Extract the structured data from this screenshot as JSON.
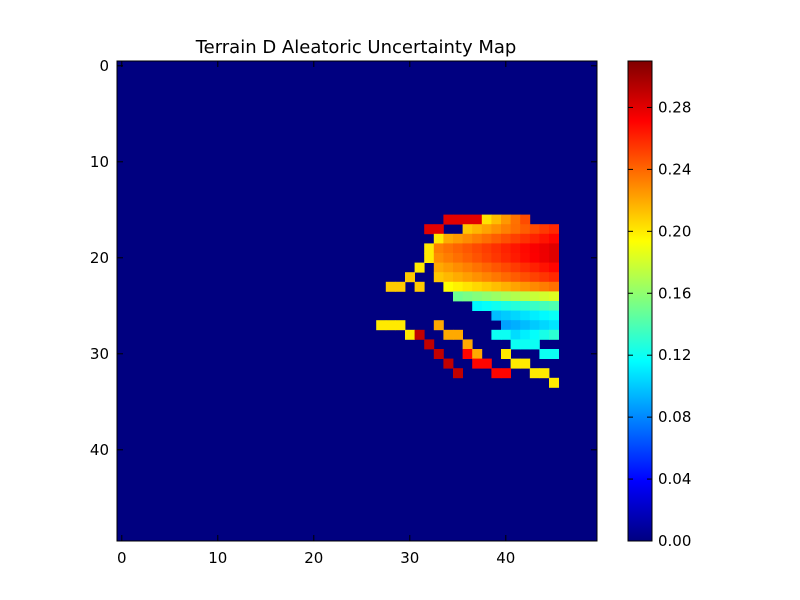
{
  "chart_data": {
    "type": "heatmap",
    "title": "Terrain D Aleatoric Uncertainty Map",
    "xlabel": "",
    "ylabel": "",
    "grid_size": [
      50,
      50
    ],
    "xlim": [
      -0.5,
      49.5
    ],
    "ylim": [
      49.5,
      -0.5
    ],
    "x_ticks": [
      0,
      10,
      20,
      30,
      40
    ],
    "y_ticks": [
      0,
      10,
      20,
      30,
      40
    ],
    "colormap": "jet",
    "background_value": 0.0,
    "colorbar": {
      "range": [
        0.0,
        0.31
      ],
      "ticks": [
        "0.00",
        "0.04",
        "0.08",
        "0.12",
        "0.16",
        "0.20",
        "0.24",
        "0.28"
      ]
    },
    "region": {
      "column_range": [
        27,
        45
      ],
      "row_range": [
        16,
        33
      ],
      "approximate_row_values": [
        {
          "row": 16,
          "columns": [
            38,
            42
          ],
          "value": 0.23
        },
        {
          "row": 17,
          "columns": [
            36,
            45
          ],
          "value": 0.24
        },
        {
          "row": 18,
          "columns": [
            34,
            45
          ],
          "value": 0.25
        },
        {
          "row": 19,
          "columns": [
            32,
            45
          ],
          "value": 0.26
        },
        {
          "row": 20,
          "columns": [
            33,
            45
          ],
          "value": 0.26
        },
        {
          "row": 21,
          "columns": [
            33,
            45
          ],
          "value": 0.25
        },
        {
          "row": 22,
          "columns": [
            33,
            45
          ],
          "value": 0.24
        },
        {
          "row": 23,
          "columns": [
            34,
            45
          ],
          "value": 0.22
        },
        {
          "row": 24,
          "columns": [
            35,
            45
          ],
          "value": 0.17
        },
        {
          "row": 25,
          "columns": [
            37,
            45
          ],
          "value": 0.13
        },
        {
          "row": 26,
          "columns": [
            39,
            45
          ],
          "value": 0.11
        },
        {
          "row": 27,
          "columns": [
            40,
            45
          ],
          "value": 0.1
        },
        {
          "row": 28,
          "columns": [
            41,
            45
          ],
          "value": 0.12
        }
      ],
      "streaks": [
        {
          "points": [
            [
              31,
              21
            ],
            [
              32,
              19
            ],
            [
              33,
              18
            ]
          ],
          "value": 0.2
        },
        {
          "points": [
            [
              28,
              23
            ],
            [
              30,
              22
            ],
            [
              31,
              23
            ]
          ],
          "value": 0.21
        },
        {
          "points": [
            [
              27,
              27
            ],
            [
              29,
              27
            ],
            [
              30,
              28
            ]
          ],
          "value": 0.2
        },
        {
          "points": [
            [
              31,
              28
            ],
            [
              33,
              30
            ],
            [
              35,
              32
            ]
          ],
          "value": 0.29
        },
        {
          "points": [
            [
              33,
              27
            ],
            [
              36,
              29
            ],
            [
              38,
              31
            ]
          ],
          "value": 0.22
        },
        {
          "points": [
            [
              36,
              30
            ],
            [
              39,
              32
            ],
            [
              42,
              31
            ]
          ],
          "value": 0.27
        },
        {
          "points": [
            [
              39,
              28
            ],
            [
              42,
              29
            ],
            [
              45,
              30
            ]
          ],
          "value": 0.12
        },
        {
          "points": [
            [
              40,
              30
            ],
            [
              42,
              31
            ],
            [
              45,
              33
            ]
          ],
          "value": 0.2
        },
        {
          "points": [
            [
              32,
              17
            ],
            [
              35,
              16
            ],
            [
              37,
              16
            ]
          ],
          "value": 0.28
        }
      ]
    }
  }
}
